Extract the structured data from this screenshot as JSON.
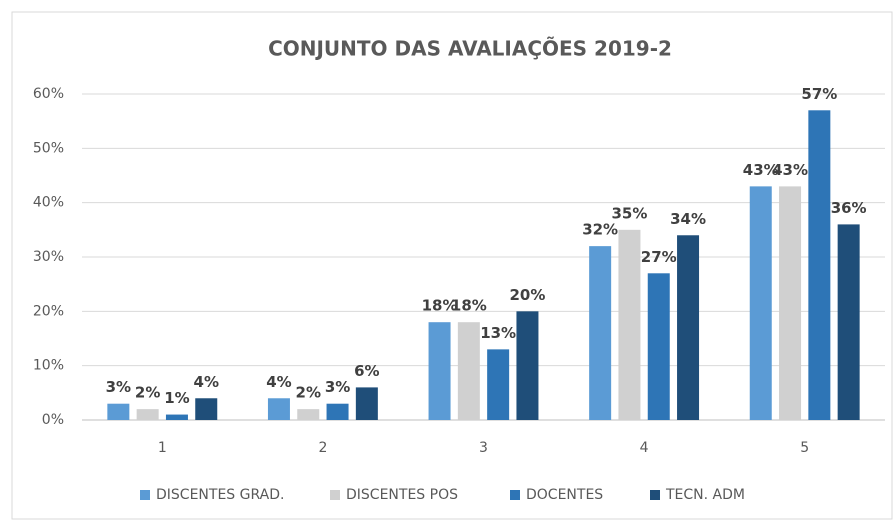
{
  "chart_data": {
    "type": "bar",
    "title": "CONJUNTO DAS AVALIAÇÕES 2019-2",
    "categories": [
      "1",
      "2",
      "3",
      "4",
      "5"
    ],
    "series": [
      {
        "name": "DISCENTES GRAD.",
        "color": "#5b9bd5",
        "values": [
          3,
          4,
          18,
          32,
          43
        ],
        "value_labels": [
          "3%",
          "4%",
          "18%",
          "32%",
          "43%"
        ]
      },
      {
        "name": "DISCENTES POS",
        "color": "#d0d0d0",
        "values": [
          2,
          2,
          18,
          35,
          43
        ],
        "value_labels": [
          "2%",
          "2%",
          "18%",
          "35%",
          "43%"
        ]
      },
      {
        "name": "DOCENTES",
        "color": "#2e75b6",
        "values": [
          1,
          3,
          13,
          27,
          57
        ],
        "value_labels": [
          "1%",
          "3%",
          "13%",
          "27%",
          "57%"
        ]
      },
      {
        "name": "TECN. ADM",
        "color": "#1f4e79",
        "values": [
          4,
          6,
          20,
          34,
          36
        ],
        "value_labels": [
          "4%",
          "6%",
          "20%",
          "34%",
          "36%"
        ]
      }
    ],
    "ylim": [
      0,
      60
    ],
    "yticks": [
      {
        "value": 0,
        "label": "0%"
      },
      {
        "value": 10,
        "label": "10%"
      },
      {
        "value": 20,
        "label": "20%"
      },
      {
        "value": 30,
        "label": "30%"
      },
      {
        "value": 40,
        "label": "40%"
      },
      {
        "value": 50,
        "label": "50%"
      },
      {
        "value": 60,
        "label": "60%"
      }
    ],
    "grid": true,
    "legend": "bottom"
  }
}
